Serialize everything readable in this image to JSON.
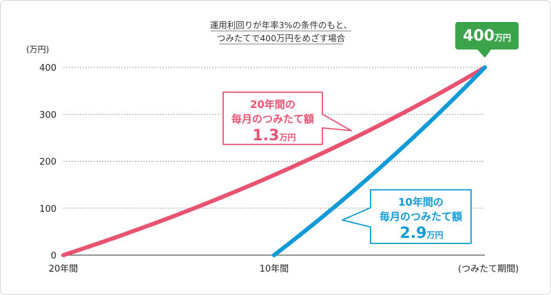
{
  "chart_data": {
    "type": "line",
    "title_lines": [
      "運用利回りが年率3%の条件のもと、",
      "つみたてで400万円をめざす場合"
    ],
    "y_unit": "(万円)",
    "x_label": "(つみたて期間)",
    "ylim": [
      0,
      400
    ],
    "y_ticks": [
      "0",
      "100",
      "200",
      "300",
      "400"
    ],
    "x_range": [
      0,
      20
    ],
    "x_ticks": [
      {
        "label": "20年間",
        "x": 0
      },
      {
        "label": "10年間",
        "x": 10
      }
    ],
    "grid": true,
    "annual_rate": 0.03,
    "series": [
      {
        "name": "",
        "color": "#e85372",
        "start": 0,
        "end": 20,
        "monthly": 1.3,
        "end_value": 400
      },
      {
        "name": "",
        "color": "#109ad7",
        "start": 10,
        "end": 20,
        "monthly": 2.9,
        "end_value": 400
      }
    ],
    "annotations": {
      "end_badge": {
        "value": "400",
        "unit": "万円",
        "color": "#3ba34a"
      },
      "red_callout": {
        "line1": "20年間の",
        "line2": "毎月のつみたて額",
        "value": "1.3",
        "unit": "万円",
        "color": "#e85372"
      },
      "blue_callout": {
        "line1": "10年間の",
        "line2": "毎月のつみたて額",
        "value": "2.9",
        "unit": "万円",
        "color": "#109ad7"
      }
    }
  }
}
